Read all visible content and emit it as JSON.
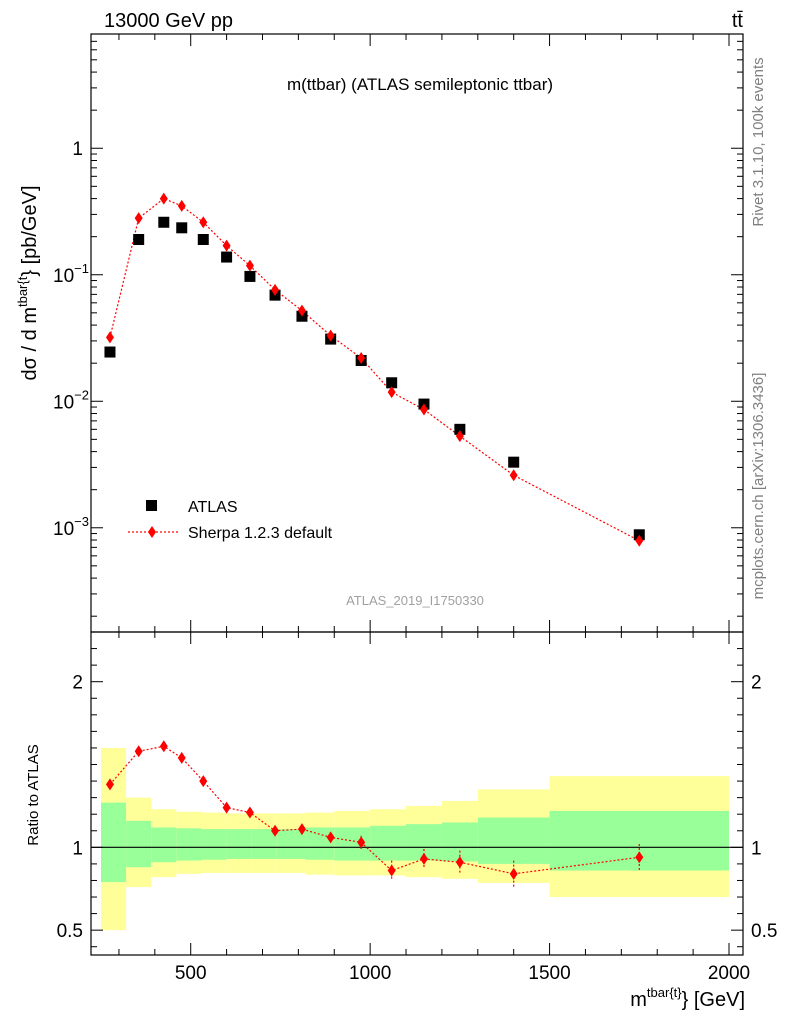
{
  "header": {
    "left": "13000 GeV pp",
    "right": "tt̄"
  },
  "side": {
    "rivet": "Rivet 3.1.10,  100k events",
    "mcplots": "mcplots.cern.ch [arXiv:1306.3436]"
  },
  "colors": {
    "atlas": "#000000",
    "sherpa": "#ff0000",
    "band_outer": "#ffff99",
    "band_inner": "#99ff99",
    "watermark": "#a0a0a0"
  },
  "chart_data": [
    {
      "type": "scatter",
      "title": "m(ttbar) (ATLAS semileptonic ttbar)",
      "watermark": "ATLAS_2019_I1750330",
      "ylabel_main": "dσ / d m",
      "ylabel_sup": "tbar{t",
      "ylabel_tail": "} [pb/GeV]",
      "yscale": "log",
      "ylim": [
        0.00015,
        8
      ],
      "xlim": [
        225,
        2000
      ],
      "y_ticks": [
        {
          "value": 1,
          "base": "1",
          "exp": ""
        },
        {
          "value": 0.1,
          "base": "10",
          "exp": "−1"
        },
        {
          "value": 0.01,
          "base": "10",
          "exp": "−2"
        },
        {
          "value": 0.001,
          "base": "10",
          "exp": "−3"
        }
      ],
      "legend": {
        "placement": "lower-left",
        "entries": [
          "ATLAS",
          "Sherpa 1.2.3 default"
        ]
      },
      "series": [
        {
          "name": "ATLAS",
          "marker": "square",
          "x": [
            275,
            355,
            425,
            475,
            535,
            600,
            665,
            735,
            810,
            890,
            975,
            1060,
            1150,
            1250,
            1400,
            1750
          ],
          "y": [
            0.0245,
            0.19,
            0.26,
            0.235,
            0.19,
            0.138,
            0.097,
            0.069,
            0.047,
            0.031,
            0.021,
            0.014,
            0.0095,
            0.006,
            0.0033,
            0.00088
          ]
        },
        {
          "name": "Sherpa 1.2.3 default",
          "marker": "diamond",
          "x": [
            275,
            355,
            425,
            475,
            535,
            600,
            665,
            735,
            810,
            890,
            975,
            1060,
            1150,
            1250,
            1400,
            1750
          ],
          "y": [
            0.032,
            0.28,
            0.4,
            0.35,
            0.26,
            0.17,
            0.118,
            0.076,
            0.052,
            0.033,
            0.022,
            0.0118,
            0.0086,
            0.0053,
            0.0026,
            0.00079
          ]
        }
      ]
    },
    {
      "type": "scatter",
      "ylabel": "Ratio to ATLAS",
      "xlabel_main": "m",
      "xlabel_sup": "tbar{t}",
      "xlabel_tail": "} [GeV]",
      "ylim": [
        0.35,
        2.3
      ],
      "xlim": [
        225,
        2000
      ],
      "y_ticks": [
        0.5,
        1,
        2
      ],
      "x_ticks": [
        500,
        1000,
        1500,
        2000
      ],
      "bands": {
        "edges": [
          250,
          320,
          390,
          460,
          530,
          600,
          670,
          740,
          820,
          900,
          1000,
          1100,
          1200,
          1300,
          1500,
          2000
        ],
        "inner_lo": [
          0.79,
          0.88,
          0.91,
          0.92,
          0.925,
          0.93,
          0.93,
          0.93,
          0.925,
          0.92,
          0.92,
          0.92,
          0.915,
          0.9,
          0.86
        ],
        "inner_hi": [
          1.27,
          1.16,
          1.12,
          1.115,
          1.11,
          1.11,
          1.11,
          1.11,
          1.12,
          1.12,
          1.13,
          1.14,
          1.15,
          1.18,
          1.22
        ],
        "outer_lo": [
          0.5,
          0.76,
          0.82,
          0.84,
          0.845,
          0.845,
          0.845,
          0.845,
          0.835,
          0.83,
          0.83,
          0.82,
          0.81,
          0.785,
          0.7
        ],
        "outer_hi": [
          1.6,
          1.3,
          1.23,
          1.215,
          1.21,
          1.205,
          1.205,
          1.205,
          1.21,
          1.22,
          1.23,
          1.25,
          1.28,
          1.35,
          1.43
        ]
      },
      "series": [
        {
          "name": "Sherpa 1.2.3 default",
          "x": [
            275,
            355,
            425,
            475,
            535,
            600,
            665,
            735,
            810,
            890,
            975,
            1060,
            1150,
            1250,
            1400,
            1750
          ],
          "y": [
            1.38,
            1.58,
            1.61,
            1.54,
            1.4,
            1.24,
            1.21,
            1.1,
            1.11,
            1.06,
            1.03,
            0.86,
            0.93,
            0.91,
            0.84,
            0.94
          ],
          "err": [
            0.03,
            0.02,
            0.02,
            0.02,
            0.02,
            0.02,
            0.02,
            0.02,
            0.02,
            0.03,
            0.04,
            0.06,
            0.06,
            0.07,
            0.08,
            0.08
          ]
        }
      ]
    }
  ]
}
